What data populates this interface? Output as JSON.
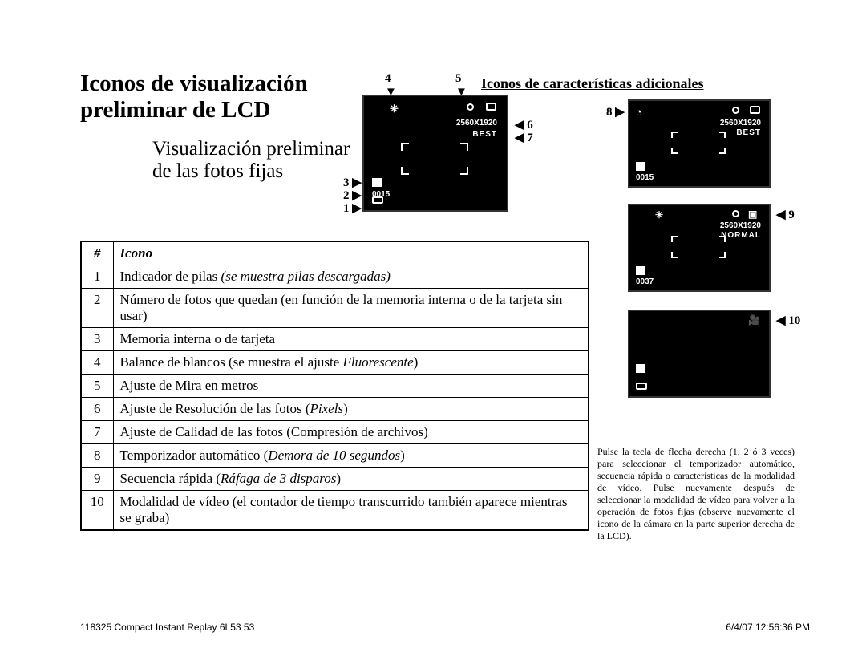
{
  "title": "Iconos de visualización preliminar de LCD",
  "subtitle": "Visualización preliminar de las fotos fijas",
  "righthead": "Iconos de características adicionales",
  "lcd_main": {
    "res": "2560X1920",
    "qual": "BEST",
    "count": "0015"
  },
  "lcd8": {
    "res": "2560X1920",
    "qual": "BEST",
    "count": "0015"
  },
  "lcd9": {
    "res": "2560X1920",
    "qual": "NORMAL",
    "count": "0037"
  },
  "calls": {
    "c1": "1",
    "c2": "2",
    "c3": "3",
    "c4": "4",
    "c5": "5",
    "c6": "6",
    "c7": "7",
    "c8": "8",
    "c9": "9",
    "c10": "10"
  },
  "table": {
    "head_num": "#",
    "head_icon": "Icono",
    "rows": [
      {
        "n": "1",
        "t": "Indicador de pilas <em>(se muestra pilas descargadas)</em>"
      },
      {
        "n": "2",
        "t": "Número de fotos que quedan (en función de la memoria interna o de la tarjeta sin usar)"
      },
      {
        "n": "3",
        "t": "Memoria interna o de tarjeta"
      },
      {
        "n": "4",
        "t": "Balance de blancos (se muestra el ajuste <em>Fluorescente</em>)"
      },
      {
        "n": "5",
        "t": "Ajuste de Mira en metros"
      },
      {
        "n": "6",
        "t": "Ajuste de Resolución de las fotos (<em>Pixels</em>)"
      },
      {
        "n": "7",
        "t": "Ajuste de Calidad de las fotos (Compresión de archivos)"
      },
      {
        "n": "8",
        "t": "Temporizador automático (<em>Demora de 10 segundos</em>)"
      },
      {
        "n": "9",
        "t": "Secuencia rápida (<em>Ráfaga de 3 disparos</em>)"
      },
      {
        "n": "10",
        "t": "Modalidad de vídeo (el contador de tiempo transcurrido también aparece mientras se graba)"
      }
    ]
  },
  "note": "Pulse la tecla de flecha derecha (1, 2 ó 3 veces) para seleccionar el temporizador automático, secuencia rápida o características de la modalidad de vídeo. Pulse nuevamente después de seleccionar la modalidad de vídeo para volver a la operación de fotos fijas (observe nuevamente el icono de la cámara en la parte superior derecha de la LCD).",
  "footer_left": "118325 Compact Instant Replay 6L53   53",
  "footer_right": "6/4/07   12:56:36 PM"
}
